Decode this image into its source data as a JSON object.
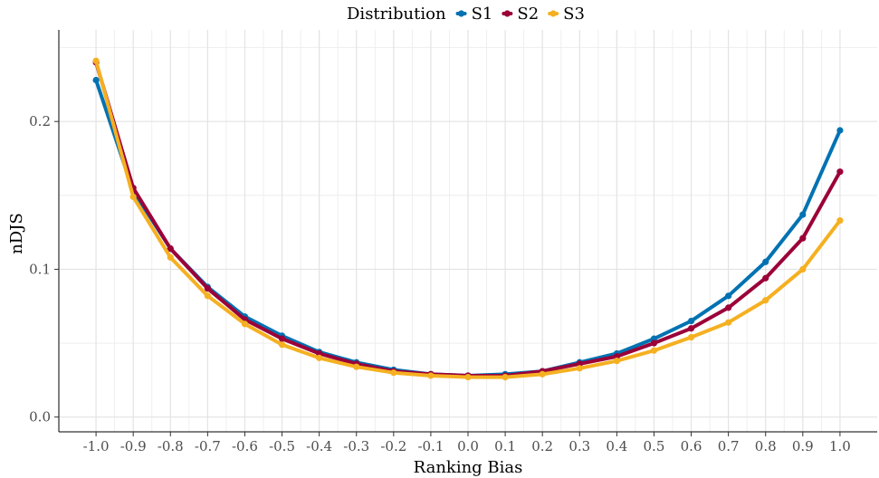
{
  "chart_data": {
    "type": "line",
    "title": "",
    "xlabel": "Ranking Bias",
    "ylabel": "nDJS",
    "xlim": [
      -1.1,
      1.1
    ],
    "ylim": [
      -0.01,
      0.262
    ],
    "x_ticks": [
      -1.0,
      -0.9,
      -0.8,
      -0.7,
      -0.6,
      -0.5,
      -0.4,
      -0.3,
      -0.2,
      -0.1,
      0.0,
      0.1,
      0.2,
      0.3,
      0.4,
      0.5,
      0.6,
      0.7,
      0.8,
      0.9,
      1.0
    ],
    "x_tick_labels": [
      "-1.0",
      "-0.9",
      "-0.8",
      "-0.7",
      "-0.6",
      "-0.5",
      "-0.4",
      "-0.3",
      "-0.2",
      "-0.1",
      "0.0",
      "0.1",
      "0.2",
      "0.3",
      "0.4",
      "0.5",
      "0.6",
      "0.7",
      "0.8",
      "0.9",
      "1.0"
    ],
    "y_ticks": [
      0.0,
      0.1,
      0.2
    ],
    "y_tick_labels": [
      "0.0",
      "0.1",
      "0.2"
    ],
    "grid": true,
    "legend": {
      "title": "Distribution",
      "position": "top"
    },
    "x": [
      -1.0,
      -0.9,
      -0.8,
      -0.7,
      -0.6,
      -0.5,
      -0.4,
      -0.3,
      -0.2,
      -0.1,
      0.0,
      0.1,
      0.2,
      0.3,
      0.4,
      0.5,
      0.6,
      0.7,
      0.8,
      0.9,
      1.0
    ],
    "series": [
      {
        "name": "S1",
        "color": "#0072b2",
        "values": [
          0.228,
          0.153,
          0.114,
          0.088,
          0.068,
          0.055,
          0.044,
          0.037,
          0.032,
          0.029,
          0.028,
          0.029,
          0.031,
          0.037,
          0.043,
          0.053,
          0.065,
          0.082,
          0.105,
          0.137,
          0.194
        ]
      },
      {
        "name": "S2",
        "color": "#9b0038",
        "values": [
          0.24,
          0.155,
          0.114,
          0.087,
          0.066,
          0.053,
          0.043,
          0.036,
          0.031,
          0.029,
          0.028,
          0.028,
          0.031,
          0.036,
          0.041,
          0.05,
          0.06,
          0.074,
          0.094,
          0.121,
          0.166
        ]
      },
      {
        "name": "S3",
        "color": "#f5b021",
        "values": [
          0.241,
          0.149,
          0.108,
          0.082,
          0.063,
          0.049,
          0.04,
          0.034,
          0.03,
          0.028,
          0.027,
          0.027,
          0.029,
          0.033,
          0.038,
          0.045,
          0.054,
          0.064,
          0.079,
          0.1,
          0.133
        ]
      }
    ]
  }
}
